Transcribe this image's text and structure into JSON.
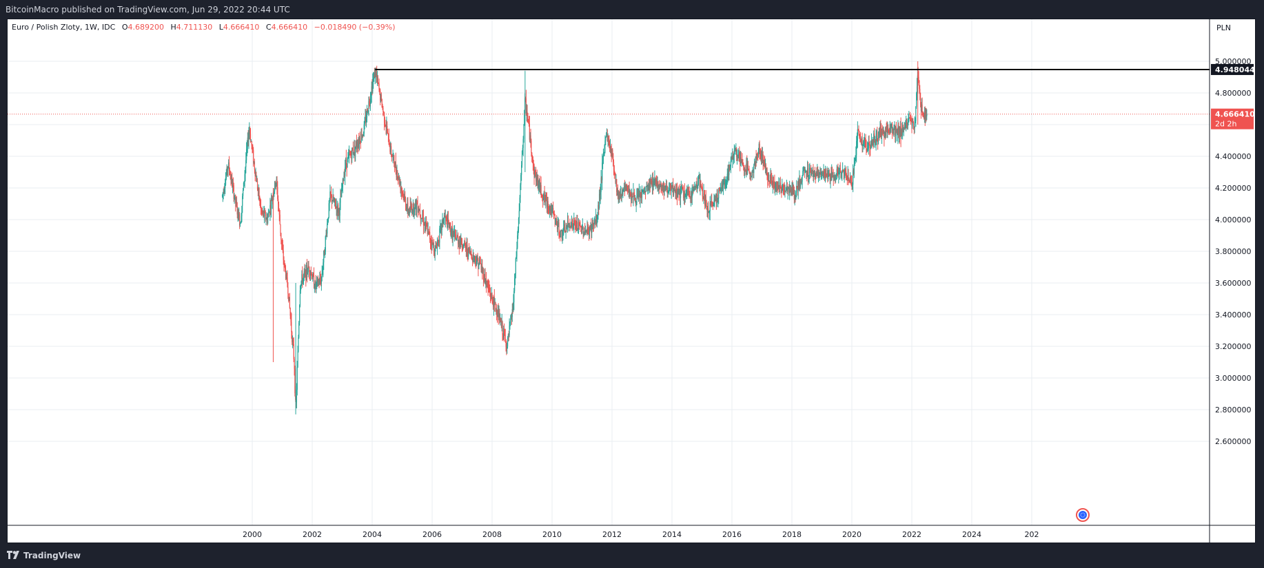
{
  "header": {
    "publish_text": "BitcoinMacro published on TradingView.com, Jun 29, 2022 20:44 UTC"
  },
  "footer": {
    "brand": "TradingView"
  },
  "legend": {
    "symbol": "Euro / Polish Zloty, 1W, IDC",
    "open_label": "O",
    "open": "4.689200",
    "high_label": "H",
    "high": "4.711130",
    "low_label": "L",
    "low": "4.666410",
    "close_label": "C",
    "close": "4.666410",
    "change": "−0.018490 (−0.39%)"
  },
  "colors": {
    "up": "#26a69a",
    "down": "#ef5350",
    "grid": "#e8edf2",
    "horizontal_line": "#000000",
    "price_tag": "#ef5350"
  },
  "chart_data": {
    "type": "candlestick",
    "currency_label": "PLN",
    "timeframe": "1W",
    "x_ticks": [
      "2000",
      "2002",
      "2004",
      "2006",
      "2008",
      "2010",
      "2012",
      "2014",
      "2016",
      "2018",
      "2020",
      "2022",
      "2024",
      "202"
    ],
    "y_ticks": [
      "2.600000",
      "2.800000",
      "3.000000",
      "3.200000",
      "3.400000",
      "3.600000",
      "3.800000",
      "4.000000",
      "4.200000",
      "4.400000",
      "4.600000",
      "4.800000",
      "5.000000"
    ],
    "y_range": [
      2.55,
      5.25
    ],
    "x_range": [
      1996.9,
      2025.1
    ],
    "horizontal_line": {
      "label": "4.948044",
      "value": 4.948044,
      "x_start": 2004.1
    },
    "last_price": {
      "label": "4.666410",
      "value": 4.66641,
      "countdown": "2d 2h"
    },
    "series": [
      [
        1999.0,
        4.15
      ],
      [
        1999.2,
        4.35
      ],
      [
        1999.5,
        4.05
      ],
      [
        1999.6,
        3.98
      ],
      [
        1999.8,
        4.4
      ],
      [
        1999.9,
        4.58
      ],
      [
        2000.1,
        4.3
      ],
      [
        2000.3,
        4.05
      ],
      [
        2000.5,
        4.0
      ],
      [
        2000.8,
        4.25
      ],
      [
        2001.0,
        3.8
      ],
      [
        2001.2,
        3.55
      ],
      [
        2001.4,
        3.1
      ],
      [
        2001.45,
        2.77
      ],
      [
        2001.6,
        3.6
      ],
      [
        2001.9,
        3.7
      ],
      [
        2002.1,
        3.58
      ],
      [
        2002.3,
        3.62
      ],
      [
        2002.6,
        4.15
      ],
      [
        2002.9,
        4.05
      ],
      [
        2003.1,
        4.35
      ],
      [
        2003.4,
        4.45
      ],
      [
        2003.7,
        4.55
      ],
      [
        2004.0,
        4.85
      ],
      [
        2004.1,
        4.94
      ],
      [
        2004.3,
        4.75
      ],
      [
        2004.6,
        4.45
      ],
      [
        2004.9,
        4.25
      ],
      [
        2005.2,
        4.05
      ],
      [
        2005.5,
        4.1
      ],
      [
        2005.8,
        3.95
      ],
      [
        2006.1,
        3.8
      ],
      [
        2006.4,
        4.02
      ],
      [
        2006.7,
        3.9
      ],
      [
        2007.0,
        3.85
      ],
      [
        2007.3,
        3.78
      ],
      [
        2007.6,
        3.72
      ],
      [
        2007.9,
        3.55
      ],
      [
        2008.2,
        3.4
      ],
      [
        2008.5,
        3.2
      ],
      [
        2008.7,
        3.45
      ],
      [
        2008.9,
        4.05
      ],
      [
        2009.1,
        4.75
      ],
      [
        2009.2,
        4.62
      ],
      [
        2009.4,
        4.3
      ],
      [
        2009.7,
        4.15
      ],
      [
        2010.0,
        4.05
      ],
      [
        2010.3,
        3.9
      ],
      [
        2010.6,
        3.98
      ],
      [
        2010.9,
        3.95
      ],
      [
        2011.2,
        3.92
      ],
      [
        2011.5,
        4.0
      ],
      [
        2011.8,
        4.55
      ],
      [
        2012.0,
        4.42
      ],
      [
        2012.2,
        4.15
      ],
      [
        2012.5,
        4.2
      ],
      [
        2012.8,
        4.12
      ],
      [
        2013.1,
        4.18
      ],
      [
        2013.4,
        4.25
      ],
      [
        2013.7,
        4.2
      ],
      [
        2014.0,
        4.18
      ],
      [
        2014.3,
        4.17
      ],
      [
        2014.6,
        4.15
      ],
      [
        2014.9,
        4.25
      ],
      [
        2015.2,
        4.05
      ],
      [
        2015.5,
        4.15
      ],
      [
        2015.8,
        4.25
      ],
      [
        2016.1,
        4.45
      ],
      [
        2016.4,
        4.32
      ],
      [
        2016.7,
        4.3
      ],
      [
        2016.9,
        4.45
      ],
      [
        2017.2,
        4.28
      ],
      [
        2017.5,
        4.2
      ],
      [
        2017.9,
        4.2
      ],
      [
        2018.1,
        4.15
      ],
      [
        2018.4,
        4.3
      ],
      [
        2018.7,
        4.3
      ],
      [
        2019.0,
        4.28
      ],
      [
        2019.3,
        4.27
      ],
      [
        2019.6,
        4.3
      ],
      [
        2019.9,
        4.28
      ],
      [
        2020.0,
        4.22
      ],
      [
        2020.2,
        4.55
      ],
      [
        2020.5,
        4.45
      ],
      [
        2020.8,
        4.52
      ],
      [
        2021.0,
        4.55
      ],
      [
        2021.3,
        4.58
      ],
      [
        2021.6,
        4.55
      ],
      [
        2021.8,
        4.6
      ],
      [
        2022.0,
        4.62
      ],
      [
        2022.1,
        4.58
      ],
      [
        2022.2,
        4.95
      ],
      [
        2022.3,
        4.72
      ],
      [
        2022.4,
        4.65
      ],
      [
        2022.5,
        4.67
      ]
    ]
  }
}
